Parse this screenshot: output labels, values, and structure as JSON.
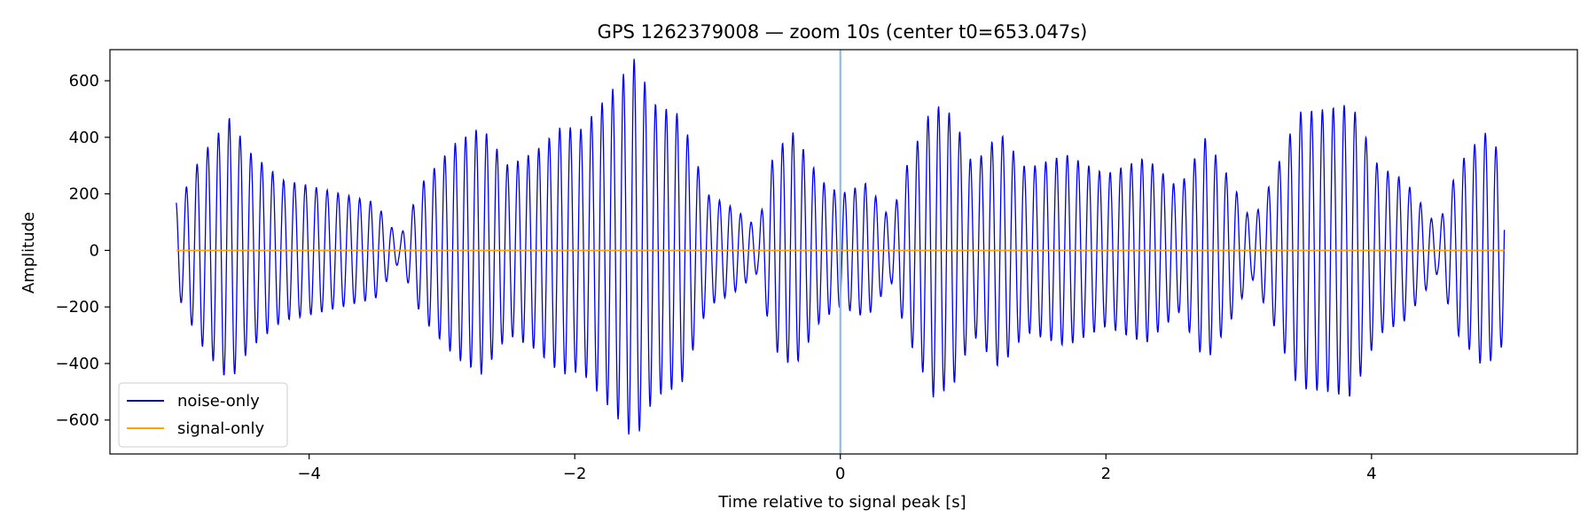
{
  "chart_data": {
    "type": "line",
    "title": "GPS 1262379008 — zoom 10s (center t0=653.047s)",
    "xlabel": "Time relative to signal peak [s]",
    "ylabel": "Amplitude",
    "xlim": [
      -5.5,
      5.55
    ],
    "ylim": [
      -720,
      710
    ],
    "xticks": [
      -4,
      -2,
      0,
      2,
      4
    ],
    "yticks": [
      -600,
      -400,
      -200,
      0,
      200,
      400,
      600
    ],
    "xtick_labels": [
      "−4",
      "−2",
      "0",
      "2",
      "4"
    ],
    "ytick_labels": [
      "−600",
      "−400",
      "−200",
      "0",
      "200",
      "400",
      "600"
    ],
    "grid": false,
    "legend_position": "lower-left",
    "marker_line": {
      "x": 0,
      "color": "#8fbde3"
    },
    "series": [
      {
        "name": "noise-only",
        "color": "#0000ee",
        "x_range": [
          -5,
          5
        ],
        "carrier_hz": 12.5,
        "envelope": [
          [
            -4.97,
            180
          ],
          [
            -4.82,
            330
          ],
          [
            -4.6,
            470
          ],
          [
            -4.45,
            350
          ],
          [
            -4.2,
            250
          ],
          [
            -4.0,
            230
          ],
          [
            -3.75,
            200
          ],
          [
            -3.5,
            170
          ],
          [
            -3.32,
            40
          ],
          [
            -3.15,
            240
          ],
          [
            -2.9,
            380
          ],
          [
            -2.7,
            440
          ],
          [
            -2.5,
            300
          ],
          [
            -2.3,
            350
          ],
          [
            -2.1,
            440
          ],
          [
            -1.95,
            430
          ],
          [
            -1.7,
            580
          ],
          [
            -1.55,
            680
          ],
          [
            -1.4,
            520
          ],
          [
            -1.2,
            480
          ],
          [
            -1.0,
            200
          ],
          [
            -0.8,
            150
          ],
          [
            -0.62,
            80
          ],
          [
            -0.5,
            350
          ],
          [
            -0.35,
            420
          ],
          [
            -0.15,
            250
          ],
          [
            0.0,
            200
          ],
          [
            0.2,
            240
          ],
          [
            0.38,
            110
          ],
          [
            0.5,
            300
          ],
          [
            0.7,
            520
          ],
          [
            0.85,
            480
          ],
          [
            1.0,
            300
          ],
          [
            1.2,
            420
          ],
          [
            1.4,
            290
          ],
          [
            1.7,
            340
          ],
          [
            2.0,
            270
          ],
          [
            2.3,
            330
          ],
          [
            2.55,
            220
          ],
          [
            2.75,
            400
          ],
          [
            2.95,
            240
          ],
          [
            3.1,
            100
          ],
          [
            3.25,
            250
          ],
          [
            3.45,
            490
          ],
          [
            3.65,
            500
          ],
          [
            3.85,
            520
          ],
          [
            4.05,
            300
          ],
          [
            4.25,
            250
          ],
          [
            4.5,
            80
          ],
          [
            4.65,
            300
          ],
          [
            4.85,
            420
          ],
          [
            5.0,
            330
          ]
        ]
      },
      {
        "name": "signal-only",
        "color": "#ffa500",
        "x": [
          -5,
          5
        ],
        "values": [
          0,
          0
        ]
      }
    ]
  }
}
